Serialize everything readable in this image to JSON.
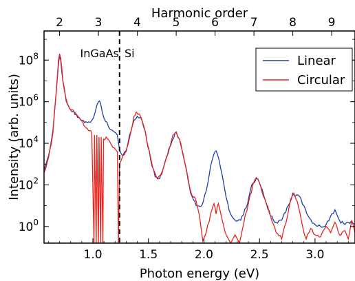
{
  "chart_data": {
    "type": "line",
    "xlabel": "Photon energy (eV)",
    "ylabel": "Intensity (arb. units)",
    "top_xlabel": "Harmonic order",
    "xlim": [
      0.56,
      3.36
    ],
    "ylim_log10": [
      -0.8,
      9.4
    ],
    "y_scale": "log",
    "x_ticks": [
      {
        "v": 1.0,
        "label": "1.0"
      },
      {
        "v": 1.5,
        "label": "1.5"
      },
      {
        "v": 2.0,
        "label": "2.0"
      },
      {
        "v": 2.5,
        "label": "2.5"
      },
      {
        "v": 3.0,
        "label": "3.0"
      }
    ],
    "y_ticks": [
      {
        "exp": 0,
        "base": "10",
        "sup": "0"
      },
      {
        "exp": 2,
        "base": "10",
        "sup": "2"
      },
      {
        "exp": 4,
        "base": "10",
        "sup": "4"
      },
      {
        "exp": 6,
        "base": "10",
        "sup": "6"
      },
      {
        "exp": 8,
        "base": "10",
        "sup": "8"
      }
    ],
    "top_ticks": [
      {
        "v": 0.7,
        "label": "2"
      },
      {
        "v": 1.05,
        "label": "3"
      },
      {
        "v": 1.4,
        "label": "4"
      },
      {
        "v": 1.75,
        "label": "5"
      },
      {
        "v": 2.1,
        "label": "6"
      },
      {
        "v": 2.45,
        "label": "7"
      },
      {
        "v": 2.8,
        "label": "8"
      },
      {
        "v": 3.15,
        "label": "9"
      }
    ],
    "vline": {
      "x": 1.24
    },
    "annotations": [
      {
        "text": "InGaAs",
        "x": 1.06
      },
      {
        "text": "Si",
        "x": 1.33
      }
    ],
    "legend_position": "top-right",
    "series": [
      {
        "name": "Linear",
        "color": "#1f3ea8",
        "points": [
          [
            0.56,
            2.7
          ],
          [
            0.6,
            3.4
          ],
          [
            0.64,
            4.6
          ],
          [
            0.67,
            6.5
          ],
          [
            0.69,
            7.8
          ],
          [
            0.7,
            8.2
          ],
          [
            0.71,
            8.0
          ],
          [
            0.73,
            7.0
          ],
          [
            0.76,
            6.0
          ],
          [
            0.8,
            5.6
          ],
          [
            0.85,
            5.4
          ],
          [
            0.9,
            5.1
          ],
          [
            0.95,
            5.0
          ],
          [
            0.99,
            5.1
          ],
          [
            1.02,
            5.5
          ],
          [
            1.05,
            6.0
          ],
          [
            1.07,
            5.9
          ],
          [
            1.1,
            5.2
          ],
          [
            1.14,
            4.8
          ],
          [
            1.18,
            4.6
          ],
          [
            1.22,
            4.4
          ],
          [
            1.24,
            3.7
          ],
          [
            1.27,
            3.4
          ],
          [
            1.3,
            3.6
          ],
          [
            1.33,
            4.4
          ],
          [
            1.37,
            5.1
          ],
          [
            1.4,
            5.3
          ],
          [
            1.43,
            5.25
          ],
          [
            1.47,
            4.6
          ],
          [
            1.52,
            3.2
          ],
          [
            1.56,
            2.4
          ],
          [
            1.6,
            2.3
          ],
          [
            1.64,
            2.9
          ],
          [
            1.69,
            3.8
          ],
          [
            1.74,
            4.5
          ],
          [
            1.75,
            4.55
          ],
          [
            1.78,
            4.2
          ],
          [
            1.83,
            3.0
          ],
          [
            1.88,
            1.6
          ],
          [
            1.93,
            1.0
          ],
          [
            1.98,
            1.0
          ],
          [
            2.02,
            1.7
          ],
          [
            2.06,
            2.9
          ],
          [
            2.1,
            3.6
          ],
          [
            2.12,
            3.5
          ],
          [
            2.15,
            2.8
          ],
          [
            2.2,
            1.4
          ],
          [
            2.24,
            0.6
          ],
          [
            2.28,
            0.3
          ],
          [
            2.33,
            0.3
          ],
          [
            2.38,
            0.9
          ],
          [
            2.43,
            2.0
          ],
          [
            2.47,
            2.3
          ],
          [
            2.5,
            2.1
          ],
          [
            2.55,
            1.3
          ],
          [
            2.6,
            0.5
          ],
          [
            2.65,
            0.2
          ],
          [
            2.7,
            0.3
          ],
          [
            2.76,
            1.0
          ],
          [
            2.8,
            1.6
          ],
          [
            2.85,
            1.5
          ],
          [
            2.9,
            1.0
          ],
          [
            2.95,
            0.4
          ],
          [
            3.0,
            0.1
          ],
          [
            3.05,
            0.0
          ],
          [
            3.1,
            0.1
          ],
          [
            3.15,
            0.6
          ],
          [
            3.18,
            0.8
          ],
          [
            3.22,
            0.3
          ],
          [
            3.27,
            0.1
          ],
          [
            3.3,
            0.2
          ],
          [
            3.36,
            0.1
          ]
        ]
      },
      {
        "name": "Circular",
        "color": "#e8231c",
        "points": [
          [
            0.56,
            2.6
          ],
          [
            0.6,
            3.3
          ],
          [
            0.64,
            4.5
          ],
          [
            0.67,
            6.5
          ],
          [
            0.69,
            8.0
          ],
          [
            0.7,
            8.3
          ],
          [
            0.71,
            8.1
          ],
          [
            0.73,
            7.0
          ],
          [
            0.76,
            6.1
          ],
          [
            0.8,
            5.6
          ],
          [
            0.85,
            5.4
          ],
          [
            0.88,
            5.2
          ],
          [
            0.91,
            5.0
          ],
          [
            0.93,
            4.8
          ],
          [
            0.95,
            4.7
          ],
          [
            0.97,
            4.6
          ],
          [
            0.99,
            4.5
          ],
          [
            1.01,
            -0.8
          ],
          [
            1.015,
            4.4
          ],
          [
            1.03,
            -0.8
          ],
          [
            1.035,
            4.4
          ],
          [
            1.05,
            -0.8
          ],
          [
            1.055,
            4.3
          ],
          [
            1.07,
            -0.8
          ],
          [
            1.075,
            4.3
          ],
          [
            1.09,
            -0.8
          ],
          [
            1.095,
            4.2
          ],
          [
            1.12,
            4.3
          ],
          [
            1.15,
            4.1
          ],
          [
            1.18,
            3.8
          ],
          [
            1.22,
            3.6
          ],
          [
            1.23,
            -0.8
          ],
          [
            1.24,
            3.0
          ],
          [
            1.27,
            3.4
          ],
          [
            1.3,
            3.7
          ],
          [
            1.34,
            4.5
          ],
          [
            1.37,
            5.3
          ],
          [
            1.39,
            5.5
          ],
          [
            1.42,
            5.4
          ],
          [
            1.46,
            4.8
          ],
          [
            1.5,
            3.8
          ],
          [
            1.54,
            2.8
          ],
          [
            1.58,
            2.3
          ],
          [
            1.62,
            2.5
          ],
          [
            1.67,
            3.4
          ],
          [
            1.72,
            4.4
          ],
          [
            1.75,
            4.55
          ],
          [
            1.78,
            4.2
          ],
          [
            1.83,
            3.0
          ],
          [
            1.88,
            1.7
          ],
          [
            1.93,
            1.2
          ],
          [
            1.96,
            0.5
          ],
          [
            1.99,
            -0.7
          ],
          [
            2.02,
            -0.3
          ],
          [
            2.06,
            0.6
          ],
          [
            2.09,
            1.1
          ],
          [
            2.11,
            0.6
          ],
          [
            2.13,
            1.1
          ],
          [
            2.16,
            0.4
          ],
          [
            2.2,
            -0.4
          ],
          [
            2.24,
            -0.8
          ],
          [
            2.28,
            -0.4
          ],
          [
            2.32,
            -0.8
          ],
          [
            2.36,
            0.2
          ],
          [
            2.4,
            1.1
          ],
          [
            2.44,
            2.0
          ],
          [
            2.47,
            2.35
          ],
          [
            2.5,
            2.1
          ],
          [
            2.55,
            1.3
          ],
          [
            2.6,
            0.5
          ],
          [
            2.65,
            -0.3
          ],
          [
            2.7,
            -0.6
          ],
          [
            2.74,
            0.2
          ],
          [
            2.78,
            1.3
          ],
          [
            2.81,
            1.6
          ],
          [
            2.84,
            1.2
          ],
          [
            2.88,
            0.2
          ],
          [
            2.92,
            -0.6
          ],
          [
            2.96,
            -0.1
          ],
          [
            3.0,
            -0.4
          ],
          [
            3.05,
            -0.5
          ],
          [
            3.1,
            0.0
          ],
          [
            3.14,
            -0.3
          ],
          [
            3.18,
            0.2
          ],
          [
            3.22,
            -0.4
          ],
          [
            3.27,
            -0.2
          ],
          [
            3.3,
            -0.6
          ],
          [
            3.33,
            0.3
          ],
          [
            3.36,
            -0.3
          ]
        ]
      }
    ]
  }
}
